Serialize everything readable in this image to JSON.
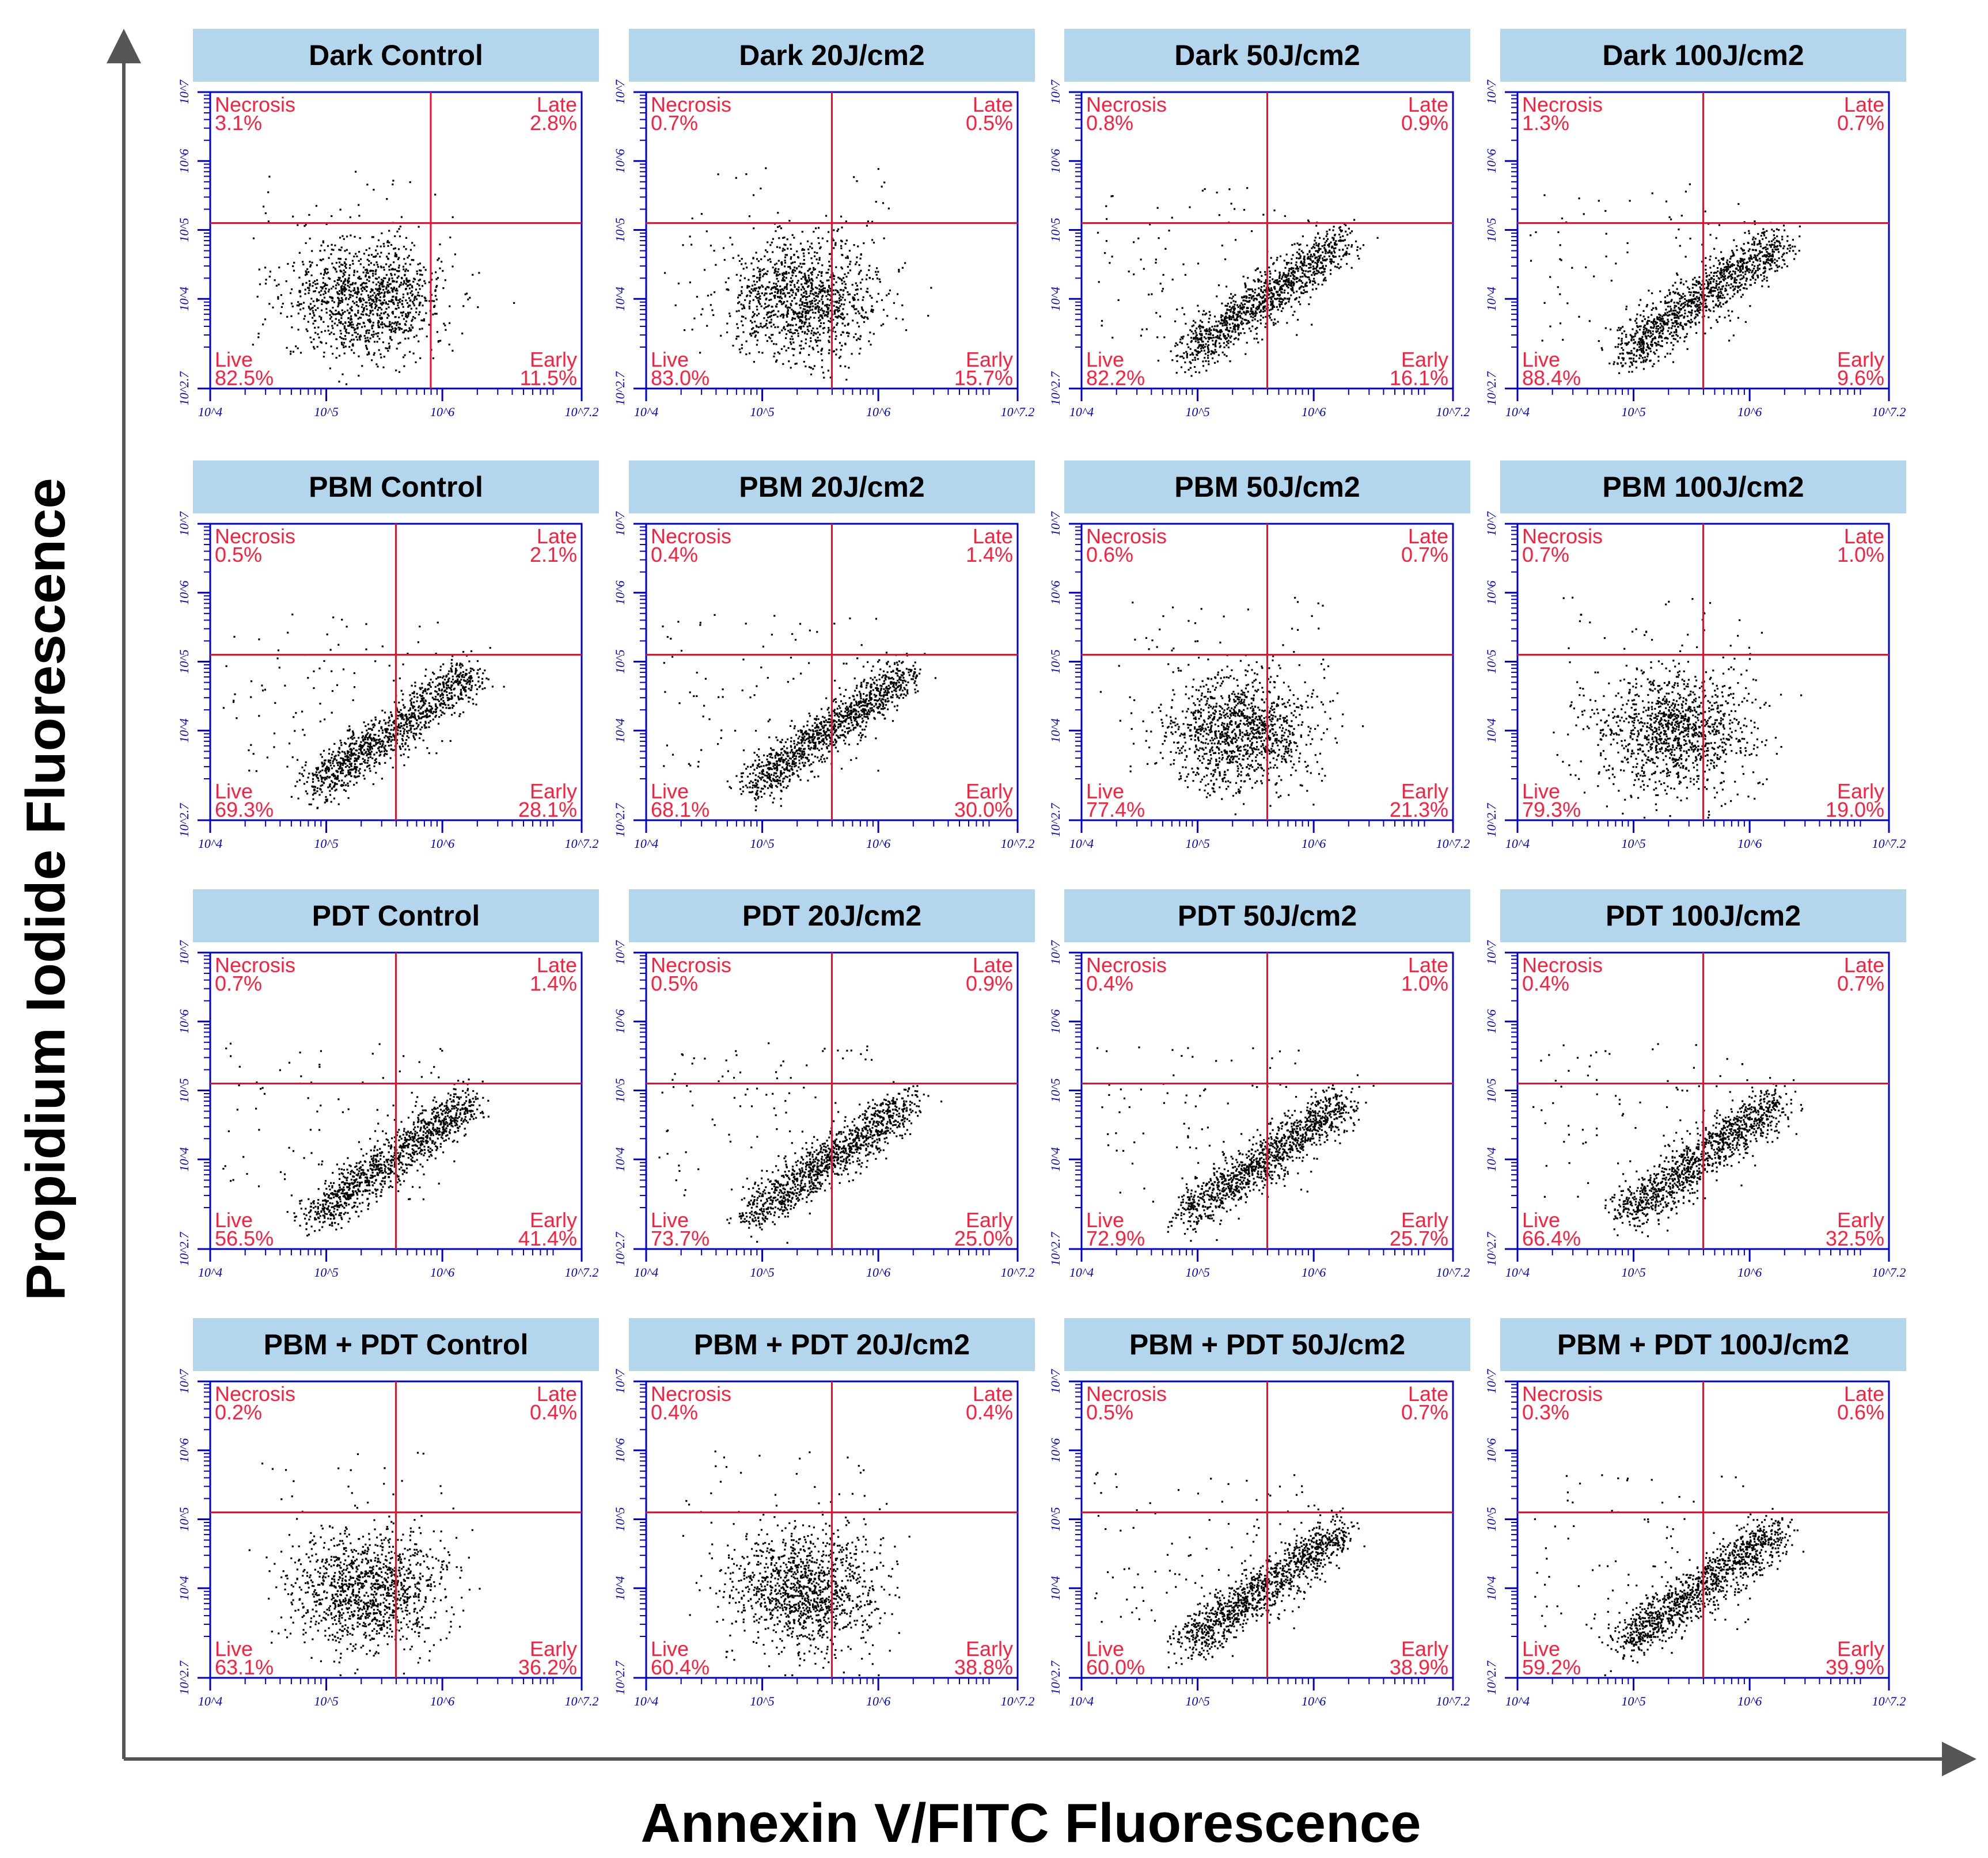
{
  "figure": {
    "x_axis_title": "Annexin V/FITC Fluorescence",
    "y_axis_title": "Propidium Iodide Fluorescence",
    "colors": {
      "title_box": "#b4d6ec",
      "plot_frame": "#0000c8",
      "gate_line": "#e8102a",
      "quadrant_text": "#ff1f3d",
      "dots": "#000000",
      "axis": "#555555"
    }
  },
  "chart_data": [
    {
      "type": "scatter",
      "title": "Dark Control",
      "shape": "round",
      "xlim": [
        "10^4",
        "10^7.2"
      ],
      "ylim": [
        "10^2.7",
        "10^7"
      ],
      "x_ticks": [
        "10^4",
        "10^5",
        "10^6",
        "10^7.2"
      ],
      "y_ticks": [
        "10^2.7",
        "10^4",
        "10^5",
        "10^6",
        "10^7"
      ],
      "x_gate": "10^5.9",
      "y_gate": "10^5.1",
      "quadrants": {
        "necrosis": {
          "label": "Necrosis",
          "value": "3.1%"
        },
        "late": {
          "label": "Late",
          "value": "2.8%"
        },
        "live": {
          "label": "Live",
          "value": "82.5%"
        },
        "early": {
          "label": "Early",
          "value": "11.5%"
        }
      }
    },
    {
      "type": "scatter",
      "title": "Dark 20J/cm2",
      "shape": "round",
      "xlim": [
        "10^4",
        "10^7.2"
      ],
      "ylim": [
        "10^2.7",
        "10^7"
      ],
      "x_ticks": [
        "10^4",
        "10^5",
        "10^6",
        "10^7.2"
      ],
      "y_ticks": [
        "10^2.7",
        "10^4",
        "10^5",
        "10^6",
        "10^7"
      ],
      "x_gate": "10^5.6",
      "y_gate": "10^5.1",
      "quadrants": {
        "necrosis": {
          "label": "Necrosis",
          "value": "0.7%"
        },
        "late": {
          "label": "Late",
          "value": "0.5%"
        },
        "live": {
          "label": "Live",
          "value": "83.0%"
        },
        "early": {
          "label": "Early",
          "value": "15.7%"
        }
      }
    },
    {
      "type": "scatter",
      "title": "Dark 50J/cm2",
      "shape": "diag",
      "xlim": [
        "10^4",
        "10^7.2"
      ],
      "ylim": [
        "10^2.7",
        "10^7"
      ],
      "x_ticks": [
        "10^4",
        "10^5",
        "10^6",
        "10^7.2"
      ],
      "y_ticks": [
        "10^2.7",
        "10^4",
        "10^5",
        "10^6",
        "10^7"
      ],
      "x_gate": "10^5.6",
      "y_gate": "10^5.1",
      "quadrants": {
        "necrosis": {
          "label": "Necrosis",
          "value": "0.8%"
        },
        "late": {
          "label": "Late",
          "value": "0.9%"
        },
        "live": {
          "label": "Live",
          "value": "82.2%"
        },
        "early": {
          "label": "Early",
          "value": "16.1%"
        }
      }
    },
    {
      "type": "scatter",
      "title": "Dark 100J/cm2",
      "shape": "diag",
      "xlim": [
        "10^4",
        "10^7.2"
      ],
      "ylim": [
        "10^2.7",
        "10^7"
      ],
      "x_ticks": [
        "10^4",
        "10^5",
        "10^6",
        "10^7.2"
      ],
      "y_ticks": [
        "10^2.7",
        "10^4",
        "10^5",
        "10^6",
        "10^7"
      ],
      "x_gate": "10^5.6",
      "y_gate": "10^5.1",
      "quadrants": {
        "necrosis": {
          "label": "Necrosis",
          "value": "1.3%"
        },
        "late": {
          "label": "Late",
          "value": "0.7%"
        },
        "live": {
          "label": "Live",
          "value": "88.4%"
        },
        "early": {
          "label": "Early",
          "value": "9.6%"
        }
      }
    },
    {
      "type": "scatter",
      "title": "PBM Control",
      "shape": "diag",
      "xlim": [
        "10^4",
        "10^7.2"
      ],
      "ylim": [
        "10^2.7",
        "10^7"
      ],
      "x_ticks": [
        "10^4",
        "10^5",
        "10^6",
        "10^7.2"
      ],
      "y_ticks": [
        "10^2.7",
        "10^4",
        "10^5",
        "10^6",
        "10^7"
      ],
      "x_gate": "10^5.6",
      "y_gate": "10^5.1",
      "quadrants": {
        "necrosis": {
          "label": "Necrosis",
          "value": "0.5%"
        },
        "late": {
          "label": "Late",
          "value": "2.1%"
        },
        "live": {
          "label": "Live",
          "value": "69.3%"
        },
        "early": {
          "label": "Early",
          "value": "28.1%"
        }
      }
    },
    {
      "type": "scatter",
      "title": "PBM 20J/cm2",
      "shape": "diag",
      "xlim": [
        "10^4",
        "10^7.2"
      ],
      "ylim": [
        "10^2.7",
        "10^7"
      ],
      "x_ticks": [
        "10^4",
        "10^5",
        "10^6",
        "10^7.2"
      ],
      "y_ticks": [
        "10^2.7",
        "10^4",
        "10^5",
        "10^6",
        "10^7"
      ],
      "x_gate": "10^5.6",
      "y_gate": "10^5.1",
      "quadrants": {
        "necrosis": {
          "label": "Necrosis",
          "value": "0.4%"
        },
        "late": {
          "label": "Late",
          "value": "1.4%"
        },
        "live": {
          "label": "Live",
          "value": "68.1%"
        },
        "early": {
          "label": "Early",
          "value": "30.0%"
        }
      }
    },
    {
      "type": "scatter",
      "title": "PBM 50J/cm2",
      "shape": "round",
      "xlim": [
        "10^4",
        "10^7.2"
      ],
      "ylim": [
        "10^2.7",
        "10^7"
      ],
      "x_ticks": [
        "10^4",
        "10^5",
        "10^6",
        "10^7.2"
      ],
      "y_ticks": [
        "10^2.7",
        "10^4",
        "10^5",
        "10^6",
        "10^7"
      ],
      "x_gate": "10^5.6",
      "y_gate": "10^5.1",
      "quadrants": {
        "necrosis": {
          "label": "Necrosis",
          "value": "0.6%"
        },
        "late": {
          "label": "Late",
          "value": "0.7%"
        },
        "live": {
          "label": "Live",
          "value": "77.4%"
        },
        "early": {
          "label": "Early",
          "value": "21.3%"
        }
      }
    },
    {
      "type": "scatter",
      "title": "PBM 100J/cm2",
      "shape": "round",
      "xlim": [
        "10^4",
        "10^7.2"
      ],
      "ylim": [
        "10^2.7",
        "10^7"
      ],
      "x_ticks": [
        "10^4",
        "10^5",
        "10^6",
        "10^7.2"
      ],
      "y_ticks": [
        "10^2.7",
        "10^4",
        "10^5",
        "10^6",
        "10^7"
      ],
      "x_gate": "10^5.6",
      "y_gate": "10^5.1",
      "quadrants": {
        "necrosis": {
          "label": "Necrosis",
          "value": "0.7%"
        },
        "late": {
          "label": "Late",
          "value": "1.0%"
        },
        "live": {
          "label": "Live",
          "value": "79.3%"
        },
        "early": {
          "label": "Early",
          "value": "19.0%"
        }
      }
    },
    {
      "type": "scatter",
      "title": "PDT Control",
      "shape": "diag",
      "xlim": [
        "10^4",
        "10^7.2"
      ],
      "ylim": [
        "10^2.7",
        "10^7"
      ],
      "x_ticks": [
        "10^4",
        "10^5",
        "10^6",
        "10^7.2"
      ],
      "y_ticks": [
        "10^2.7",
        "10^4",
        "10^5",
        "10^6",
        "10^7"
      ],
      "x_gate": "10^5.6",
      "y_gate": "10^5.1",
      "quadrants": {
        "necrosis": {
          "label": "Necrosis",
          "value": "0.7%"
        },
        "late": {
          "label": "Late",
          "value": "1.4%"
        },
        "live": {
          "label": "Live",
          "value": "56.5%"
        },
        "early": {
          "label": "Early",
          "value": "41.4%"
        }
      }
    },
    {
      "type": "scatter",
      "title": "PDT 20J/cm2",
      "shape": "diag",
      "xlim": [
        "10^4",
        "10^7.2"
      ],
      "ylim": [
        "10^2.7",
        "10^7"
      ],
      "x_ticks": [
        "10^4",
        "10^5",
        "10^6",
        "10^7.2"
      ],
      "y_ticks": [
        "10^2.7",
        "10^4",
        "10^5",
        "10^6",
        "10^7"
      ],
      "x_gate": "10^5.6",
      "y_gate": "10^5.1",
      "quadrants": {
        "necrosis": {
          "label": "Necrosis",
          "value": "0.5%"
        },
        "late": {
          "label": "Late",
          "value": "0.9%"
        },
        "live": {
          "label": "Live",
          "value": "73.7%"
        },
        "early": {
          "label": "Early",
          "value": "25.0%"
        }
      }
    },
    {
      "type": "scatter",
      "title": "PDT 50J/cm2",
      "shape": "diag",
      "xlim": [
        "10^4",
        "10^7.2"
      ],
      "ylim": [
        "10^2.7",
        "10^7"
      ],
      "x_ticks": [
        "10^4",
        "10^5",
        "10^6",
        "10^7.2"
      ],
      "y_ticks": [
        "10^2.7",
        "10^4",
        "10^5",
        "10^6",
        "10^7"
      ],
      "x_gate": "10^5.6",
      "y_gate": "10^5.1",
      "quadrants": {
        "necrosis": {
          "label": "Necrosis",
          "value": "0.4%"
        },
        "late": {
          "label": "Late",
          "value": "1.0%"
        },
        "live": {
          "label": "Live",
          "value": "72.9%"
        },
        "early": {
          "label": "Early",
          "value": "25.7%"
        }
      }
    },
    {
      "type": "scatter",
      "title": "PDT 100J/cm2",
      "shape": "diag",
      "xlim": [
        "10^4",
        "10^7.2"
      ],
      "ylim": [
        "10^2.7",
        "10^7"
      ],
      "x_ticks": [
        "10^4",
        "10^5",
        "10^6",
        "10^7.2"
      ],
      "y_ticks": [
        "10^2.7",
        "10^4",
        "10^5",
        "10^6",
        "10^7"
      ],
      "x_gate": "10^5.6",
      "y_gate": "10^5.1",
      "quadrants": {
        "necrosis": {
          "label": "Necrosis",
          "value": "0.4%"
        },
        "late": {
          "label": "Late",
          "value": "0.7%"
        },
        "live": {
          "label": "Live",
          "value": "66.4%"
        },
        "early": {
          "label": "Early",
          "value": "32.5%"
        }
      }
    },
    {
      "type": "scatter",
      "title": "PBM + PDT Control",
      "shape": "round",
      "xlim": [
        "10^4",
        "10^7.2"
      ],
      "ylim": [
        "10^2.7",
        "10^7"
      ],
      "x_ticks": [
        "10^4",
        "10^5",
        "10^6",
        "10^7.2"
      ],
      "y_ticks": [
        "10^2.7",
        "10^4",
        "10^5",
        "10^6",
        "10^7"
      ],
      "x_gate": "10^5.6",
      "y_gate": "10^5.1",
      "quadrants": {
        "necrosis": {
          "label": "Necrosis",
          "value": "0.2%"
        },
        "late": {
          "label": "Late",
          "value": "0.4%"
        },
        "live": {
          "label": "Live",
          "value": "63.1%"
        },
        "early": {
          "label": "Early",
          "value": "36.2%"
        }
      }
    },
    {
      "type": "scatter",
      "title": "PBM + PDT 20J/cm2",
      "shape": "round",
      "xlim": [
        "10^4",
        "10^7.2"
      ],
      "ylim": [
        "10^2.7",
        "10^7"
      ],
      "x_ticks": [
        "10^4",
        "10^5",
        "10^6",
        "10^7.2"
      ],
      "y_ticks": [
        "10^2.7",
        "10^4",
        "10^5",
        "10^6",
        "10^7"
      ],
      "x_gate": "10^5.6",
      "y_gate": "10^5.1",
      "quadrants": {
        "necrosis": {
          "label": "Necrosis",
          "value": "0.4%"
        },
        "late": {
          "label": "Late",
          "value": "0.4%"
        },
        "live": {
          "label": "Live",
          "value": "60.4%"
        },
        "early": {
          "label": "Early",
          "value": "38.8%"
        }
      }
    },
    {
      "type": "scatter",
      "title": "PBM + PDT 50J/cm2",
      "shape": "diag",
      "xlim": [
        "10^4",
        "10^7.2"
      ],
      "ylim": [
        "10^2.7",
        "10^7"
      ],
      "x_ticks": [
        "10^4",
        "10^5",
        "10^6",
        "10^7.2"
      ],
      "y_ticks": [
        "10^2.7",
        "10^4",
        "10^5",
        "10^6",
        "10^7"
      ],
      "x_gate": "10^5.6",
      "y_gate": "10^5.1",
      "quadrants": {
        "necrosis": {
          "label": "Necrosis",
          "value": "0.5%"
        },
        "late": {
          "label": "Late",
          "value": "0.7%"
        },
        "live": {
          "label": "Live",
          "value": "60.0%"
        },
        "early": {
          "label": "Early",
          "value": "38.9%"
        }
      }
    },
    {
      "type": "scatter",
      "title": "PBM + PDT 100J/cm2",
      "shape": "diag",
      "xlim": [
        "10^4",
        "10^7.2"
      ],
      "ylim": [
        "10^2.7",
        "10^7"
      ],
      "x_ticks": [
        "10^4",
        "10^5",
        "10^6",
        "10^7.2"
      ],
      "y_ticks": [
        "10^2.7",
        "10^4",
        "10^5",
        "10^6",
        "10^7"
      ],
      "x_gate": "10^5.6",
      "y_gate": "10^5.1",
      "quadrants": {
        "necrosis": {
          "label": "Necrosis",
          "value": "0.3%"
        },
        "late": {
          "label": "Late",
          "value": "0.6%"
        },
        "live": {
          "label": "Live",
          "value": "59.2%"
        },
        "early": {
          "label": "Early",
          "value": "39.9%"
        }
      }
    }
  ]
}
